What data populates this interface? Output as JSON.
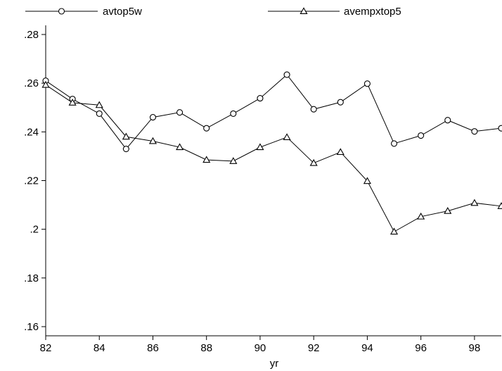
{
  "chart_data": {
    "type": "line",
    "xlabel": "yr",
    "ylabel": "",
    "x": [
      82,
      83,
      84,
      85,
      86,
      87,
      88,
      89,
      90,
      91,
      92,
      93,
      94,
      95,
      96,
      97,
      98,
      99
    ],
    "xlim": [
      82,
      99
    ],
    "ylim": [
      0.16,
      0.28
    ],
    "x_ticks": [
      82,
      84,
      86,
      88,
      90,
      92,
      94,
      96,
      98
    ],
    "x_tick_labels": [
      "82",
      "84",
      "86",
      "88",
      "90",
      "92",
      "94",
      "96",
      "98"
    ],
    "y_ticks": [
      0.16,
      0.18,
      0.2,
      0.22,
      0.24,
      0.26,
      0.28
    ],
    "y_tick_labels": [
      ".16",
      ".18",
      ".2",
      ".22",
      ".24",
      ".26",
      ".28"
    ],
    "grid": false,
    "legend_position": "top",
    "series": [
      {
        "name": "avtop5w",
        "marker": "circle",
        "color": "#000000",
        "values": [
          0.261,
          0.2535,
          0.2475,
          0.233,
          0.246,
          0.248,
          0.2415,
          0.2475,
          0.2538,
          0.2635,
          0.2493,
          0.2522,
          0.2598,
          0.2352,
          0.2385,
          0.2448,
          0.2402,
          0.2415
        ]
      },
      {
        "name": "avempxtop5",
        "marker": "triangle",
        "color": "#000000",
        "values": [
          0.2593,
          0.252,
          0.251,
          0.238,
          0.2362,
          0.2337,
          0.2285,
          0.228,
          0.2337,
          0.2378,
          0.2272,
          0.2317,
          0.2198,
          0.199,
          0.2052,
          0.2075,
          0.2108,
          0.2095
        ]
      }
    ]
  }
}
